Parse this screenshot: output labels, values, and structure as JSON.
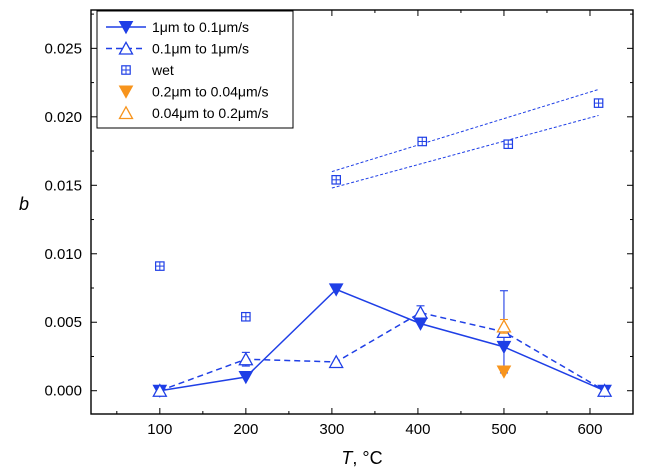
{
  "chart_data": {
    "type": "scatter",
    "xlabel": {
      "italic": "T",
      "rest": ",  °C"
    },
    "ylabel": "b",
    "xlim": [
      20,
      650
    ],
    "ylim": [
      -0.0017,
      0.0278
    ],
    "xticks": [
      100,
      200,
      300,
      400,
      500,
      600
    ],
    "yticks": [
      0.0,
      0.005,
      0.01,
      0.015,
      0.02,
      0.025
    ],
    "ytick_labels": [
      "0.000",
      "0.005",
      "0.010",
      "0.015",
      "0.020",
      "0.025"
    ],
    "grid": false,
    "legend_position": "top-left",
    "colors": {
      "blue": "#1f3fe6",
      "orange": "#f7941d"
    },
    "series": [
      {
        "name": "1μm to 0.1μm/s",
        "marker": "triangle-down-filled",
        "line": "solid",
        "color": "blue",
        "points": [
          {
            "x": 100,
            "y": 0.0
          },
          {
            "x": 200,
            "y": 0.001
          },
          {
            "x": 305,
            "y": 0.0074
          },
          {
            "x": 403,
            "y": 0.0049
          },
          {
            "x": 500,
            "y": 0.0032
          },
          {
            "x": 617,
            "y": 0.0
          }
        ]
      },
      {
        "name": "0.1μm to 1μm/s",
        "marker": "triangle-up-open",
        "line": "dashed",
        "color": "blue",
        "points": [
          {
            "x": 100,
            "y": 0.0,
            "err": 0.0003
          },
          {
            "x": 200,
            "y": 0.0023,
            "err": 0.0005
          },
          {
            "x": 305,
            "y": 0.0021
          },
          {
            "x": 403,
            "y": 0.0057,
            "err": 0.0005
          },
          {
            "x": 500,
            "y": 0.0043,
            "err": 0.003
          },
          {
            "x": 617,
            "y": 0.0
          }
        ]
      },
      {
        "name": "wet",
        "marker": "square-grid-open",
        "line": "none",
        "color": "blue",
        "points": [
          {
            "x": 100,
            "y": 0.0091
          },
          {
            "x": 200,
            "y": 0.0054
          },
          {
            "x": 305,
            "y": 0.0154
          },
          {
            "x": 405,
            "y": 0.0182
          },
          {
            "x": 505,
            "y": 0.018
          },
          {
            "x": 610,
            "y": 0.021
          }
        ]
      },
      {
        "name": "0.2μm to 0.04μm/s",
        "marker": "triangle-down-filled",
        "line": "none",
        "color": "orange",
        "points": [
          {
            "x": 500,
            "y": 0.0014
          }
        ]
      },
      {
        "name": "0.04μm to 0.2μm/s",
        "marker": "triangle-up-open",
        "line": "none",
        "color": "orange",
        "points": [
          {
            "x": 500,
            "y": 0.0047,
            "err": 0.0005
          }
        ]
      }
    ],
    "annotations": [
      {
        "style": "dashed",
        "color": "blue",
        "from": {
          "x": 300,
          "y": 0.016
        },
        "to": {
          "x": 610,
          "y": 0.022
        }
      },
      {
        "style": "dashed",
        "color": "blue",
        "from": {
          "x": 300,
          "y": 0.0148
        },
        "to": {
          "x": 610,
          "y": 0.0201
        }
      }
    ]
  }
}
